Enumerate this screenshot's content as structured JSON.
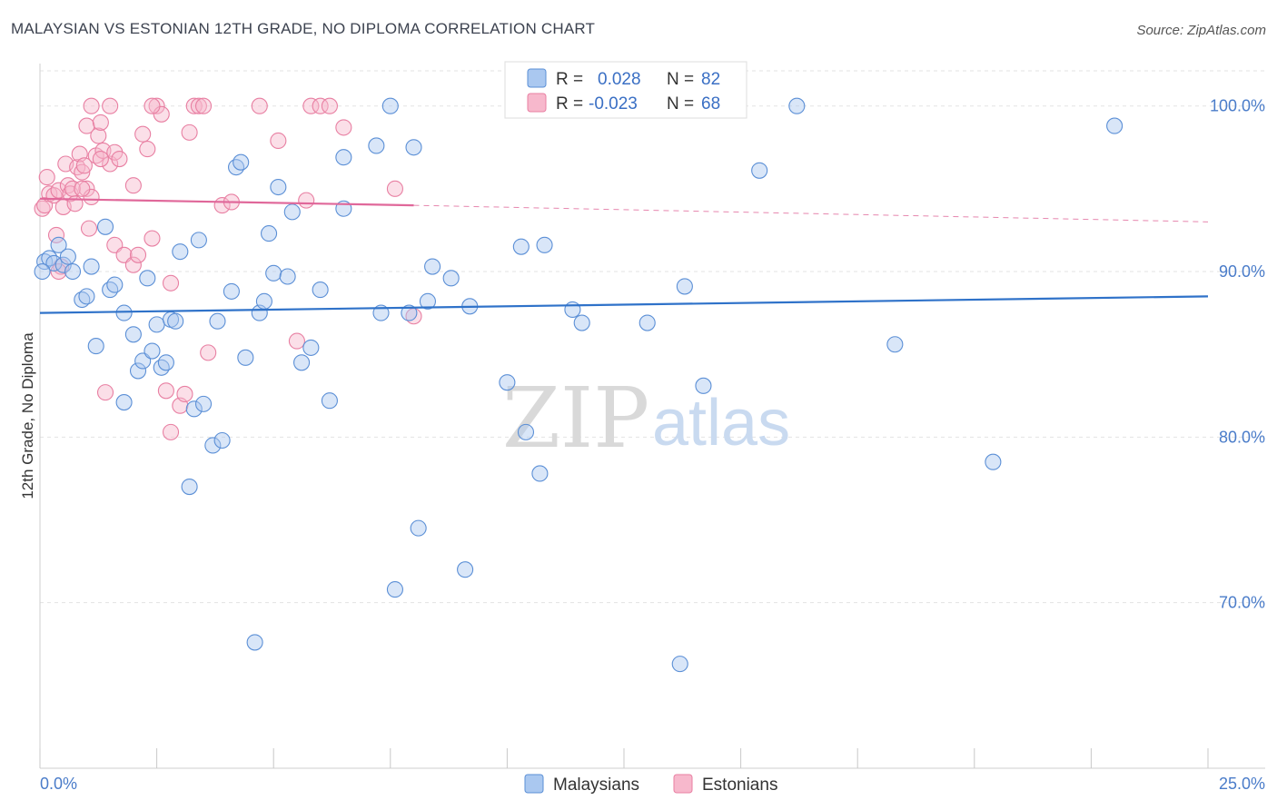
{
  "header": {
    "title": "MALAYSIAN VS ESTONIAN 12TH GRADE, NO DIPLOMA CORRELATION CHART",
    "source": "Source: ZipAtlas.com"
  },
  "legend": {
    "r_label": "R =",
    "n_label": "N =",
    "items": [
      {
        "r": "0.028",
        "n": "82"
      },
      {
        "r": "-0.023",
        "n": "68"
      }
    ]
  },
  "watermark": {
    "zip": "ZIP",
    "atlas": "atlas"
  },
  "colors": {
    "malaysian_fill": "#aac8f0",
    "malaysian_stroke": "#5b8fd6",
    "malaysian_line": "#2f72c9",
    "estonian_fill": "#f7b8cc",
    "estonian_stroke": "#e87fa2",
    "estonian_line": "#e0689a"
  },
  "chart_data": {
    "type": "scatter",
    "title": "MALAYSIAN VS ESTONIAN 12TH GRADE, NO DIPLOMA CORRELATION CHART",
    "ylabel": "12th Grade, No Diploma",
    "xlabel": "",
    "xlim": [
      0,
      25
    ],
    "ylim": [
      60,
      103
    ],
    "x_tick_labels": [
      "0.0%",
      "25.0%"
    ],
    "y_ticks": [
      70,
      80,
      90,
      100
    ],
    "y_tick_labels": [
      "70.0%",
      "80.0%",
      "90.0%",
      "100.0%"
    ],
    "grid": true,
    "legend_position": "top-center",
    "series": [
      {
        "name": "Malaysians",
        "r": 0.028,
        "n": 82,
        "trend": {
          "x": [
            0,
            25
          ],
          "y": [
            87.5,
            88.5
          ]
        },
        "points": [
          [
            0.1,
            90.6
          ],
          [
            0.2,
            90.8
          ],
          [
            0.3,
            90.5
          ],
          [
            0.4,
            91.6
          ],
          [
            0.5,
            90.4
          ],
          [
            0.6,
            90.9
          ],
          [
            0.7,
            90.0
          ],
          [
            0.9,
            88.3
          ],
          [
            1.0,
            88.5
          ],
          [
            1.1,
            90.3
          ],
          [
            1.2,
            85.5
          ],
          [
            1.4,
            92.7
          ],
          [
            1.5,
            88.9
          ],
          [
            1.6,
            89.2
          ],
          [
            1.8,
            82.1
          ],
          [
            1.8,
            87.5
          ],
          [
            2.0,
            86.2
          ],
          [
            2.1,
            84.0
          ],
          [
            2.2,
            84.6
          ],
          [
            2.3,
            89.6
          ],
          [
            2.4,
            85.2
          ],
          [
            2.5,
            86.8
          ],
          [
            2.6,
            84.2
          ],
          [
            2.7,
            84.5
          ],
          [
            2.8,
            87.1
          ],
          [
            2.9,
            87.0
          ],
          [
            3.0,
            91.2
          ],
          [
            3.2,
            77.0
          ],
          [
            3.3,
            81.7
          ],
          [
            3.4,
            91.9
          ],
          [
            3.5,
            82.0
          ],
          [
            3.7,
            79.5
          ],
          [
            3.8,
            87.0
          ],
          [
            3.9,
            79.8
          ],
          [
            4.1,
            88.8
          ],
          [
            4.2,
            96.3
          ],
          [
            4.3,
            96.6
          ],
          [
            4.4,
            84.8
          ],
          [
            4.6,
            67.6
          ],
          [
            4.7,
            87.5
          ],
          [
            4.8,
            88.2
          ],
          [
            4.9,
            92.3
          ],
          [
            5.0,
            89.9
          ],
          [
            5.1,
            95.1
          ],
          [
            5.3,
            89.7
          ],
          [
            5.4,
            93.6
          ],
          [
            5.6,
            84.5
          ],
          [
            5.8,
            85.4
          ],
          [
            6.0,
            88.9
          ],
          [
            6.2,
            82.2
          ],
          [
            6.5,
            93.8
          ],
          [
            6.5,
            96.9
          ],
          [
            7.2,
            97.6
          ],
          [
            7.3,
            87.5
          ],
          [
            7.5,
            100.0
          ],
          [
            7.6,
            70.8
          ],
          [
            7.9,
            87.5
          ],
          [
            8.0,
            97.5
          ],
          [
            8.1,
            74.5
          ],
          [
            8.3,
            88.2
          ],
          [
            8.4,
            90.3
          ],
          [
            8.8,
            89.6
          ],
          [
            9.1,
            72.0
          ],
          [
            9.2,
            87.9
          ],
          [
            10.0,
            83.3
          ],
          [
            10.3,
            91.5
          ],
          [
            10.4,
            80.3
          ],
          [
            10.7,
            77.8
          ],
          [
            10.8,
            91.6
          ],
          [
            11.4,
            87.7
          ],
          [
            11.6,
            86.9
          ],
          [
            11.7,
            100.0
          ],
          [
            13.0,
            86.9
          ],
          [
            13.7,
            66.3
          ],
          [
            13.8,
            89.1
          ],
          [
            14.2,
            83.1
          ],
          [
            15.4,
            96.1
          ],
          [
            16.2,
            100.0
          ],
          [
            18.3,
            85.6
          ],
          [
            20.4,
            78.5
          ],
          [
            23.0,
            98.8
          ],
          [
            0.05,
            90.0
          ]
        ]
      },
      {
        "name": "Estonians",
        "r": -0.023,
        "n": 68,
        "trend": {
          "x": [
            0,
            8
          ],
          "y": [
            94.4,
            94.0
          ]
        },
        "trend_ext": {
          "x": [
            8,
            25
          ],
          "y": [
            94.0,
            93.0
          ]
        },
        "points": [
          [
            0.05,
            93.8
          ],
          [
            0.1,
            94.0
          ],
          [
            0.15,
            95.7
          ],
          [
            0.2,
            94.7
          ],
          [
            0.3,
            94.6
          ],
          [
            0.35,
            92.2
          ],
          [
            0.4,
            94.9
          ],
          [
            0.45,
            90.3
          ],
          [
            0.5,
            93.9
          ],
          [
            0.55,
            96.5
          ],
          [
            0.6,
            95.2
          ],
          [
            0.65,
            94.7
          ],
          [
            0.7,
            95.0
          ],
          [
            0.75,
            94.1
          ],
          [
            0.8,
            96.3
          ],
          [
            0.85,
            97.1
          ],
          [
            0.9,
            96.0
          ],
          [
            0.95,
            96.4
          ],
          [
            1.0,
            95.0
          ],
          [
            1.0,
            98.8
          ],
          [
            1.05,
            92.6
          ],
          [
            1.1,
            94.5
          ],
          [
            1.2,
            97.0
          ],
          [
            1.25,
            98.2
          ],
          [
            1.3,
            99.0
          ],
          [
            1.35,
            97.3
          ],
          [
            1.4,
            82.7
          ],
          [
            1.5,
            96.5
          ],
          [
            1.6,
            91.6
          ],
          [
            1.6,
            97.2
          ],
          [
            1.7,
            96.8
          ],
          [
            1.8,
            91.0
          ],
          [
            2.0,
            95.2
          ],
          [
            2.0,
            90.4
          ],
          [
            2.1,
            91.0
          ],
          [
            2.2,
            98.3
          ],
          [
            2.3,
            97.4
          ],
          [
            2.4,
            92.0
          ],
          [
            2.5,
            100.0
          ],
          [
            2.6,
            99.5
          ],
          [
            2.7,
            82.8
          ],
          [
            2.8,
            89.3
          ],
          [
            2.8,
            80.3
          ],
          [
            3.0,
            81.9
          ],
          [
            3.1,
            82.6
          ],
          [
            3.2,
            98.4
          ],
          [
            3.3,
            100.0
          ],
          [
            3.4,
            100.0
          ],
          [
            3.5,
            100.0
          ],
          [
            3.6,
            85.1
          ],
          [
            3.9,
            94.0
          ],
          [
            4.1,
            94.2
          ],
          [
            4.7,
            100.0
          ],
          [
            5.1,
            97.9
          ],
          [
            5.5,
            85.8
          ],
          [
            5.7,
            94.3
          ],
          [
            5.8,
            100.0
          ],
          [
            6.0,
            100.0
          ],
          [
            6.2,
            100.0
          ],
          [
            6.5,
            98.7
          ],
          [
            7.6,
            95.0
          ],
          [
            8.0,
            87.3
          ],
          [
            0.4,
            90.0
          ],
          [
            1.1,
            100.0
          ],
          [
            1.5,
            100.0
          ],
          [
            2.4,
            100.0
          ],
          [
            0.9,
            95.0
          ],
          [
            1.3,
            96.8
          ]
        ]
      }
    ]
  }
}
